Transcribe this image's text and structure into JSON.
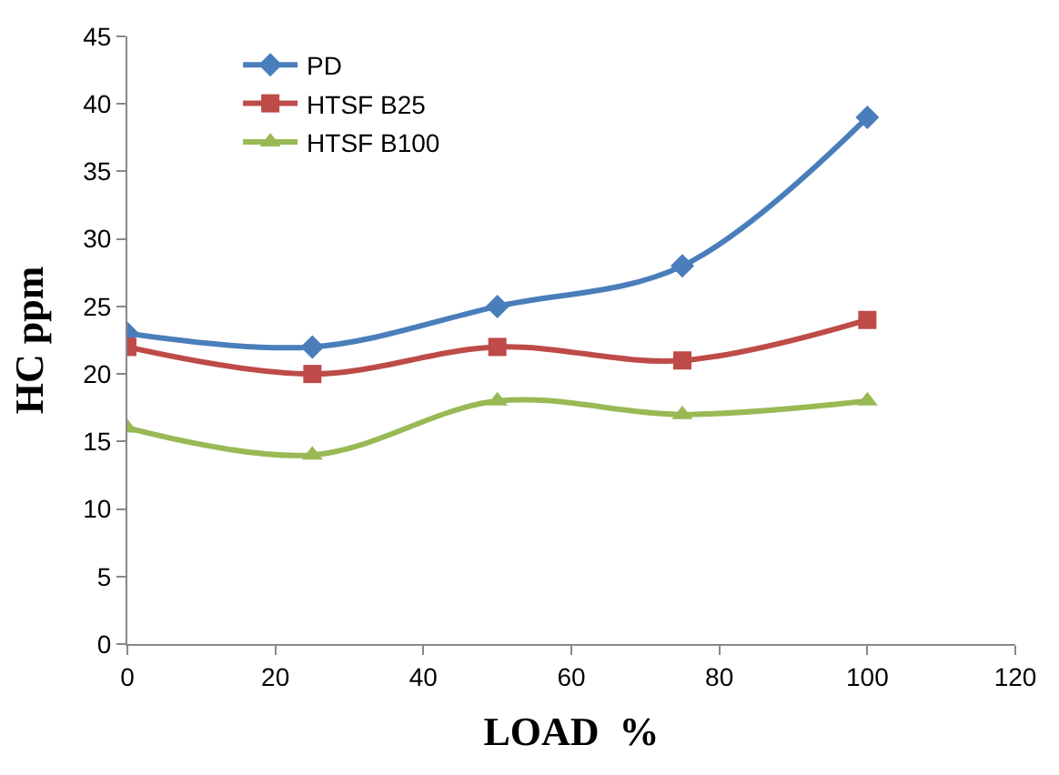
{
  "chart_data": {
    "type": "line",
    "xlabel": "LOAD  %",
    "ylabel": "HC ppm",
    "x": [
      0,
      25,
      50,
      75,
      100
    ],
    "series": [
      {
        "name": "PD",
        "color": "#4a7ebb",
        "marker": "diamond",
        "values": [
          23,
          22,
          25,
          28,
          39
        ]
      },
      {
        "name": "HTSF B25",
        "color": "#be4b48",
        "marker": "square",
        "values": [
          22,
          20,
          22,
          21,
          24
        ]
      },
      {
        "name": "HTSF B100",
        "color": "#98b954",
        "marker": "triangle",
        "values": [
          16,
          14,
          18,
          17,
          18
        ]
      }
    ],
    "xlim": [
      0,
      120
    ],
    "xticks": [
      0,
      20,
      40,
      60,
      80,
      100,
      120
    ],
    "ylim": [
      0,
      45
    ],
    "yticks": [
      0,
      5,
      10,
      15,
      20,
      25,
      30,
      35,
      40,
      45
    ],
    "legend": "top left",
    "line_style": "solid"
  }
}
